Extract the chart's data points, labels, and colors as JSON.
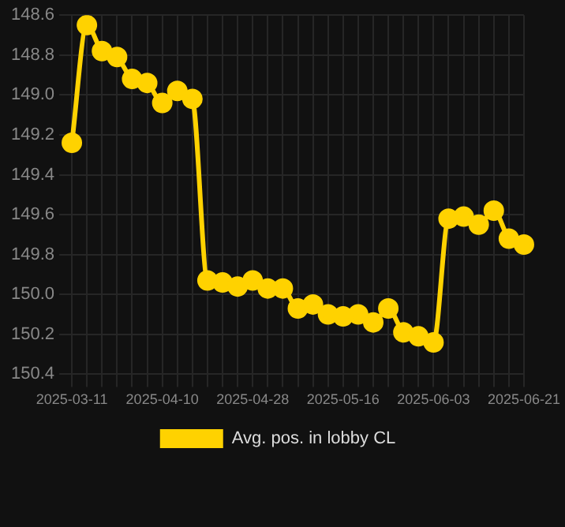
{
  "chart_data": {
    "type": "line",
    "categories": [
      "2025-03-11",
      null,
      null,
      null,
      null,
      null,
      "2025-04-10",
      null,
      null,
      null,
      null,
      null,
      "2025-04-28",
      null,
      null,
      null,
      null,
      null,
      "2025-05-16",
      null,
      null,
      null,
      null,
      null,
      "2025-06-03",
      null,
      null,
      null,
      null,
      null,
      "2025-06-21"
    ],
    "series": [
      {
        "name": "Avg. pos. in lobby CL",
        "color": "#ffd200",
        "values": [
          149.24,
          148.65,
          148.78,
          148.81,
          148.92,
          148.94,
          149.04,
          148.98,
          149.02,
          149.93,
          149.94,
          149.96,
          149.93,
          149.97,
          149.97,
          150.07,
          150.05,
          150.1,
          150.11,
          150.1,
          150.14,
          150.07,
          150.19,
          150.21,
          150.24,
          149.62,
          149.61,
          149.65,
          149.58,
          149.72,
          149.75
        ]
      }
    ],
    "ylim": [
      150.4,
      148.6
    ],
    "yticks": [
      148.6,
      148.8,
      {
        "value": 149,
        "label": "149.0"
      },
      149.2,
      149.4,
      149.6,
      149.8,
      {
        "value": 150,
        "label": "150.0"
      },
      150.2,
      150.4
    ],
    "grid": true,
    "legend": "bottom",
    "marker": "circle",
    "line_style": "solid"
  }
}
